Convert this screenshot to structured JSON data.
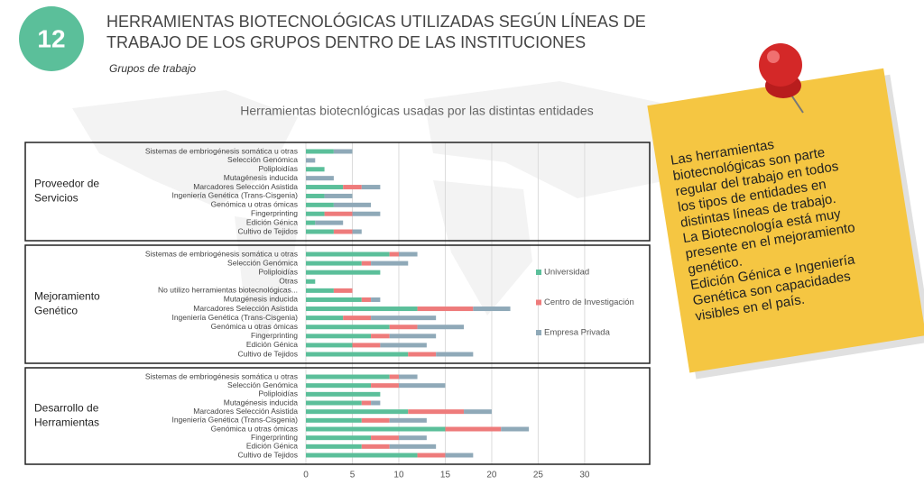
{
  "header": {
    "number": "12",
    "title": [
      "HERRAMIENTAS BIOTECNOLÓGICAS UTILIZADAS SEGÚN LÍNEAS DE",
      "TRABAJO DE LOS GRUPOS DENTRO DE LAS INSTITUCIONES"
    ],
    "subtitle": "Grupos de trabajo"
  },
  "note": {
    "lines": [
      "Las herramientas",
      "biotecnológicas son parte",
      "regular del trabajo en todos",
      "los tipos de entidades en",
      "distintas líneas de trabajo.",
      "La Biotecnología está muy",
      "presente en el mejoramiento",
      "genético.",
      "Edición Génica e Ingeniería",
      "Genética son capacidades",
      "visibles en el país."
    ]
  },
  "chart_data": {
    "type": "bar",
    "orientation": "horizontal",
    "stacked": true,
    "title": "Herramientas biotecnlógicas usadas por las distintas entidades",
    "groups": [
      {
        "label": [
          "Proveedor de",
          "Servicios"
        ],
        "categories": [
          "Sistemas de embriogénesis somática u otras",
          "Selección Genómica",
          "Poliploidías",
          "Mutagénesis inducida",
          "Marcadores Selección Asistida",
          "Ingeniería Genética (Trans-Cisgenia)",
          "Genómica u otras ómicas",
          "Fingerprinting",
          "Edición Génica",
          "Cultivo de Tejidos"
        ]
      },
      {
        "label": [
          "Mejoramiento",
          "Genético"
        ],
        "categories": [
          "Sistemas de embriogénesis somática u otras",
          "Selección Genómica",
          "Poliploidías",
          "Otras",
          "No utilizo herramientas biotecnológicas...",
          "Mutagénesis inducida",
          "Marcadores Selección Asistida",
          "Ingeniería Genética (Trans-Cisgenia)",
          "Genómica u otras ómicas",
          "Fingerprinting",
          "Edición Génica",
          "Cultivo de Tejidos"
        ]
      },
      {
        "label": [
          "Desarrollo de",
          "Herramientas"
        ],
        "categories": [
          "Sistemas de embriogénesis somática u otras",
          "Selección Genómica",
          "Poliploidías",
          "Mutagénesis inducida",
          "Marcadores Selección Asistida",
          "Ingeniería Genética (Trans-Cisgenia)",
          "Genómica u otras ómicas",
          "Fingerprinting",
          "Edición Génica",
          "Cultivo de Tejidos"
        ]
      }
    ],
    "series": [
      {
        "name": "Universidad",
        "color": "#5bbf9a",
        "values": [
          [
            3,
            0,
            2,
            0,
            4,
            2,
            3,
            2,
            1,
            3
          ],
          [
            9,
            6,
            8,
            1,
            3,
            6,
            12,
            4,
            9,
            7,
            5,
            11
          ],
          [
            9,
            7,
            8,
            6,
            11,
            6,
            15,
            7,
            6,
            12
          ]
        ]
      },
      {
        "name": "Centro de Investigación",
        "color": "#ee7b7b",
        "values": [
          [
            0,
            0,
            0,
            0,
            2,
            0,
            0,
            3,
            0,
            2
          ],
          [
            1,
            1,
            0,
            0,
            2,
            1,
            6,
            3,
            3,
            2,
            3,
            3
          ],
          [
            1,
            3,
            0,
            1,
            6,
            3,
            6,
            3,
            3,
            3
          ]
        ]
      },
      {
        "name": "Empresa Privada",
        "color": "#8fa9b8",
        "values": [
          [
            2,
            1,
            0,
            3,
            2,
            3,
            4,
            3,
            3,
            1
          ],
          [
            2,
            4,
            0,
            0,
            0,
            1,
            4,
            7,
            5,
            5,
            5,
            4
          ],
          [
            2,
            5,
            0,
            1,
            3,
            4,
            3,
            3,
            5,
            3
          ]
        ]
      }
    ],
    "xlim": [
      0,
      37
    ],
    "xticks": [
      0,
      5,
      10,
      15,
      20,
      25,
      30
    ],
    "grid": true
  }
}
